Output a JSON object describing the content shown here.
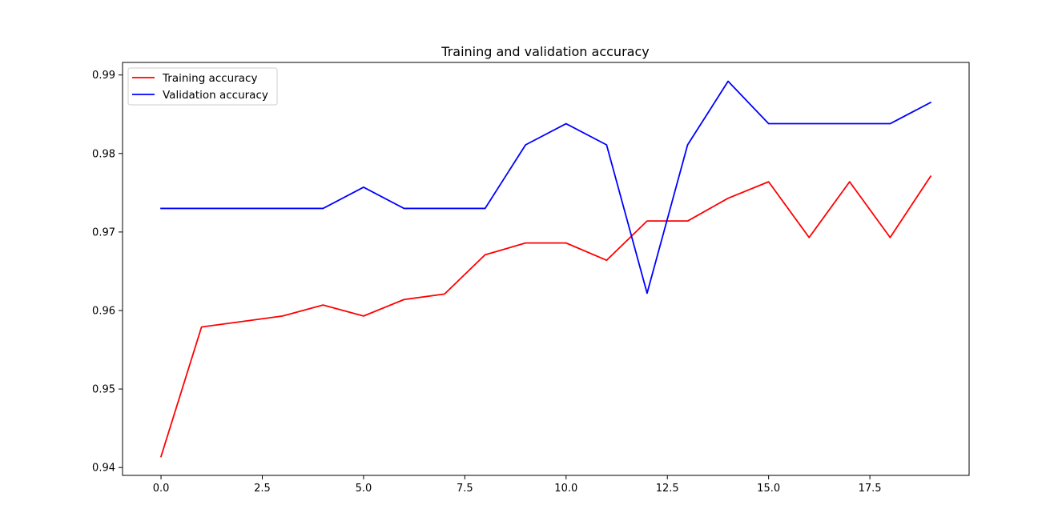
{
  "chart_data": {
    "type": "line",
    "title": "Training and validation accuracy",
    "xlabel": "",
    "ylabel": "",
    "x": [
      0,
      1,
      2,
      3,
      4,
      5,
      6,
      7,
      8,
      9,
      10,
      11,
      12,
      13,
      14,
      15,
      16,
      17,
      18,
      19
    ],
    "series": [
      {
        "name": "Training accuracy",
        "color": "#ff0000",
        "values": [
          0.9414,
          0.9579,
          0.9586,
          0.9593,
          0.9607,
          0.9593,
          0.9614,
          0.9621,
          0.9671,
          0.9686,
          0.9686,
          0.9664,
          0.9714,
          0.9714,
          0.9743,
          0.9764,
          0.9693,
          0.9764,
          0.9693,
          0.9771
        ]
      },
      {
        "name": "Validation accuracy",
        "color": "#0000ff",
        "values": [
          0.973,
          0.973,
          0.973,
          0.973,
          0.973,
          0.9757,
          0.973,
          0.973,
          0.973,
          0.9811,
          0.9838,
          0.9811,
          0.9622,
          0.9811,
          0.9892,
          0.9838,
          0.9838,
          0.9838,
          0.9838,
          0.9865
        ]
      }
    ],
    "xlim": [
      -0.95,
      19.95
    ],
    "ylim": [
      0.939,
      0.9916
    ],
    "xticks": [
      0.0,
      2.5,
      5.0,
      7.5,
      10.0,
      12.5,
      15.0,
      17.5
    ],
    "xtick_labels": [
      "0.0",
      "2.5",
      "5.0",
      "7.5",
      "10.0",
      "12.5",
      "15.0",
      "17.5"
    ],
    "yticks": [
      0.94,
      0.95,
      0.96,
      0.97,
      0.98,
      0.99
    ],
    "ytick_labels": [
      "0.94",
      "0.95",
      "0.96",
      "0.97",
      "0.98",
      "0.99"
    ],
    "grid": false,
    "legend_position": "top-left"
  }
}
